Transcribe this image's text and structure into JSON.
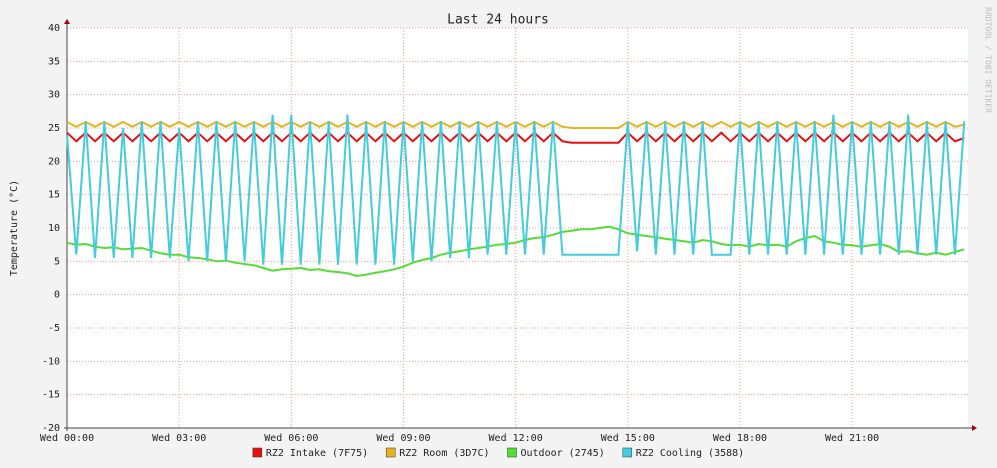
{
  "chart_data": {
    "type": "line",
    "title": "Last 24 hours",
    "y_label": "Temperature (°C)",
    "watermark": "RRDTOOL / TOBI OETIKER",
    "x": [
      0,
      0.25,
      0.5,
      0.75,
      1,
      1.25,
      1.5,
      1.75,
      2,
      2.25,
      2.5,
      2.75,
      3,
      3.25,
      3.5,
      3.75,
      4,
      4.25,
      4.5,
      4.75,
      5,
      5.25,
      5.5,
      5.75,
      6,
      6.25,
      6.5,
      6.75,
      7,
      7.25,
      7.5,
      7.75,
      8,
      8.25,
      8.5,
      8.75,
      9,
      9.25,
      9.5,
      9.75,
      10,
      10.25,
      10.5,
      10.75,
      11,
      11.25,
      11.5,
      11.75,
      12,
      12.25,
      12.5,
      12.75,
      13,
      13.25,
      13.5,
      13.75,
      14,
      14.25,
      14.5,
      14.75,
      15,
      15.25,
      15.5,
      15.75,
      16,
      16.25,
      16.5,
      16.75,
      17,
      17.25,
      17.5,
      17.75,
      18,
      18.25,
      18.5,
      18.75,
      19,
      19.25,
      19.5,
      19.75,
      20,
      20.25,
      20.5,
      20.75,
      21,
      21.25,
      21.5,
      21.75,
      22,
      22.25,
      22.5,
      22.75,
      23,
      23.25,
      23.5,
      23.75,
      24
    ],
    "xlim": [
      0,
      24.1
    ],
    "xticks": [
      {
        "value": 0,
        "label": "Wed 00:00"
      },
      {
        "value": 3,
        "label": "Wed 03:00"
      },
      {
        "value": 6,
        "label": "Wed 06:00"
      },
      {
        "value": 9,
        "label": "Wed 09:00"
      },
      {
        "value": 12,
        "label": "Wed 12:00"
      },
      {
        "value": 15,
        "label": "Wed 15:00"
      },
      {
        "value": 18,
        "label": "Wed 18:00"
      },
      {
        "value": 21,
        "label": "Wed 21:00"
      }
    ],
    "ylim": [
      -20,
      40
    ],
    "yticks": [
      -20,
      -15,
      -10,
      -5,
      0,
      5,
      10,
      15,
      20,
      25,
      30,
      35,
      40
    ],
    "grid": true,
    "series": [
      {
        "name": "RZ2 Intake (7F75)",
        "color": "#e81010",
        "values": [
          24.3,
          23,
          24.3,
          23,
          24.3,
          23,
          24.3,
          23,
          24.3,
          23,
          24.3,
          23,
          24.3,
          23,
          24.3,
          23,
          24.3,
          23,
          24.3,
          23,
          24.3,
          23,
          24.3,
          23,
          24.3,
          23,
          24.3,
          23,
          24.3,
          23,
          24.3,
          23,
          24.3,
          23,
          24.3,
          23,
          24.3,
          23,
          24.3,
          23,
          24.3,
          23,
          24.3,
          23,
          24.3,
          23,
          24.3,
          23,
          24.3,
          23,
          24.3,
          23,
          24.3,
          23,
          22.8,
          22.8,
          22.8,
          22.8,
          22.8,
          22.8,
          24.3,
          23,
          24.3,
          23,
          24.3,
          23,
          24.3,
          23,
          24.3,
          23,
          24.3,
          23,
          24.3,
          23,
          24.3,
          23,
          24.3,
          23,
          24.3,
          23,
          24.3,
          23,
          24.3,
          23,
          24.3,
          23,
          24.3,
          23,
          24.3,
          23,
          24.3,
          23,
          24.3,
          23,
          24.3,
          23,
          23.5
        ]
      },
      {
        "name": "RZ2 Room (3D7C)",
        "color": "#e6b422",
        "values": [
          25.9,
          25.2,
          25.9,
          25.2,
          25.9,
          25.2,
          25.9,
          25.2,
          25.9,
          25.2,
          25.9,
          25.2,
          25.9,
          25.2,
          25.9,
          25.2,
          25.9,
          25.2,
          25.9,
          25.2,
          25.9,
          25.2,
          25.9,
          25.2,
          25.9,
          25.2,
          25.9,
          25.2,
          25.9,
          25.2,
          25.9,
          25.2,
          25.9,
          25.2,
          25.9,
          25.2,
          25.9,
          25.2,
          25.9,
          25.2,
          25.9,
          25.2,
          25.9,
          25.2,
          25.9,
          25.2,
          25.9,
          25.2,
          25.9,
          25.2,
          25.9,
          25.2,
          25.9,
          25.2,
          25,
          25,
          25,
          25,
          25,
          25,
          25.9,
          25.2,
          25.9,
          25.2,
          25.9,
          25.2,
          25.9,
          25.2,
          25.9,
          25.2,
          25.9,
          25.2,
          25.9,
          25.2,
          25.9,
          25.2,
          25.9,
          25.2,
          25.9,
          25.2,
          25.9,
          25.2,
          25.9,
          25.2,
          25.9,
          25.2,
          25.9,
          25.2,
          25.9,
          25.2,
          25.9,
          25.2,
          25.9,
          25.2,
          25.9,
          25.2,
          25.5
        ]
      },
      {
        "name": "Outdoor (2745)",
        "color": "#55dd33",
        "values": [
          7.8,
          7.5,
          7.6,
          7.2,
          7.0,
          7.1,
          6.8,
          6.9,
          7.0,
          6.6,
          6.2,
          6.0,
          6.0,
          5.6,
          5.5,
          5.3,
          5.0,
          5.1,
          4.8,
          4.6,
          4.4,
          4.0,
          3.6,
          3.8,
          3.9,
          4.0,
          3.7,
          3.8,
          3.5,
          3.4,
          3.2,
          2.8,
          3.0,
          3.3,
          3.5,
          3.8,
          4.2,
          4.8,
          5.2,
          5.5,
          6.0,
          6.3,
          6.5,
          6.8,
          7.0,
          7.2,
          7.5,
          7.6,
          7.8,
          8.2,
          8.5,
          8.6,
          9.0,
          9.4,
          9.6,
          9.8,
          9.8,
          10.0,
          10.2,
          9.8,
          9.2,
          9.0,
          8.8,
          8.6,
          8.4,
          8.2,
          8.0,
          7.8,
          8.2,
          8.0,
          7.6,
          7.4,
          7.5,
          7.2,
          7.6,
          7.4,
          7.5,
          7.2,
          8.0,
          8.5,
          8.8,
          8.0,
          7.8,
          7.5,
          7.4,
          7.2,
          7.4,
          7.6,
          7.2,
          6.4,
          6.5,
          6.2,
          6.0,
          6.3,
          6.0,
          6.4,
          6.8
        ]
      },
      {
        "name": "RZ2 Cooling (3588)",
        "color": "#44ccdd",
        "values": [
          24,
          6,
          26,
          5.5,
          26,
          5.5,
          25,
          5.5,
          26,
          5.5,
          26,
          5.5,
          25,
          5,
          26,
          5,
          26,
          5,
          26,
          5,
          26,
          4.5,
          27,
          4.5,
          27,
          4.5,
          26,
          4.5,
          26,
          4.5,
          27,
          4.5,
          26,
          4.5,
          26,
          4.5,
          26,
          5,
          26,
          5,
          26,
          5.5,
          26,
          5.5,
          26,
          6,
          26,
          6,
          26,
          6,
          26,
          6,
          26,
          6,
          6,
          6,
          6,
          6,
          6,
          6,
          26,
          6.5,
          26,
          6,
          26,
          6,
          26,
          6,
          26,
          6,
          6,
          6,
          26,
          6,
          26,
          6,
          26,
          6,
          26,
          6,
          26,
          6,
          27,
          6,
          26,
          6,
          26,
          6,
          26,
          6,
          27,
          6,
          26,
          6,
          26,
          6,
          26
        ]
      }
    ]
  }
}
